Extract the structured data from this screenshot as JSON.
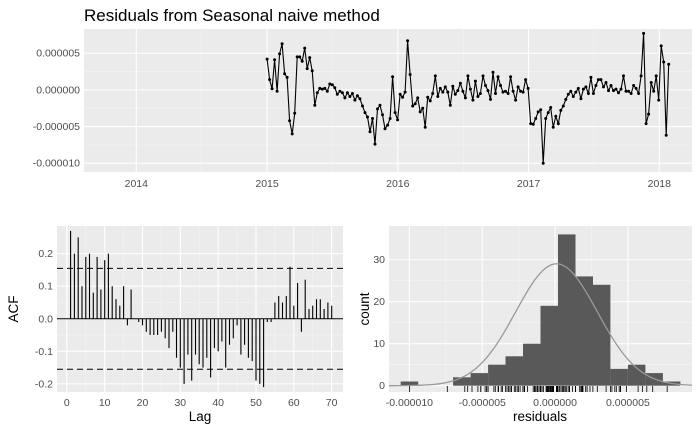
{
  "title": "Residuals from Seasonal naive method",
  "colors": {
    "panel": "#ebebeb",
    "grid_major": "#ffffff",
    "line": "#000000",
    "bar": "#595959",
    "density": "#999999",
    "tick_text": "#4d4d4d"
  },
  "charts": {
    "residuals_ts": {
      "type": "line",
      "x_ticks": [
        2014,
        2015,
        2016,
        2017,
        2018
      ],
      "y_ticks": [
        5e-06,
        0.0,
        -5e-06,
        -1e-05
      ],
      "y_tick_labels": [
        "0.000005",
        "0.000000",
        "-0.000005",
        "-0.000010"
      ],
      "xlim": [
        2013.6,
        2018.25
      ],
      "ylim": [
        -1.12e-05,
        8.3e-06
      ],
      "x_start": 2015.0,
      "x_step": 0.0192,
      "values": [
        4.2e-06,
        1.4e-06,
        1.5e-07,
        4.1e-06,
        -2e-07,
        4.9e-06,
        6.3e-06,
        2.2e-06,
        1.7e-06,
        -4.2e-06,
        -6e-06,
        -3.2e-06,
        4.5e-06,
        4.5e-06,
        3.9e-06,
        5.7e-06,
        2.9e-06,
        4.4e-06,
        2.6e-06,
        -2.1e-06,
        -4e-07,
        2e-07,
        1e-07,
        2e-07,
        -2e-07,
        8e-07,
        7e-07,
        3e-07,
        -6e-07,
        -2e-07,
        -4e-07,
        -1.1e-06,
        -4e-07,
        -9e-07,
        -5e-07,
        -1.4e-06,
        -8e-07,
        -1.2e-06,
        -2.2e-06,
        -3.1e-06,
        -3.7e-06,
        -5.7e-06,
        -3.9e-06,
        -7.4e-06,
        -2.6e-06,
        -2.1e-06,
        -3.4e-06,
        -5.3e-06,
        -4.8e-06,
        -3.9e-06,
        1.8e-06,
        -3.1e-06,
        -4.1e-06,
        -6e-07,
        -1e-06,
        -3e-07,
        6.7e-06,
        2.1e-06,
        -2.2e-06,
        -1.9e-06,
        -1.1e-06,
        -3e-06,
        -2.5e-06,
        -5.1e-06,
        -1e-06,
        -1.5e-06,
        -5e-07,
        1.9e-06,
        -9e-07,
        2e-07,
        -3e-07,
        4e-07,
        -3e-07,
        -2.1e-06,
        5e-07,
        -6e-07,
        -1e-07,
        9e-07,
        -2e-07,
        -1.1e-06,
        1.9e-06,
        1e-07,
        -1.4e-06,
        1.2e-06,
        -9e-07,
        -5e-07,
        1.9e-06,
        6e-07,
        -1e-07,
        -1.3e-06,
        2.4e-06,
        -5e-07,
        1.8e-06,
        6e-07,
        -3e-07,
        -2e-07,
        -5e-07,
        1.8e-06,
        -2e-07,
        -1.4e-06,
        4e-07,
        -2e-07,
        -3e-07,
        1.4e-06,
        2e-07,
        -4.6e-06,
        -4.7e-06,
        -3.9e-06,
        -3e-06,
        -2.7e-06,
        -1e-05,
        -3.9e-06,
        -3.1e-06,
        -2.4e-06,
        -5.1e-06,
        -3.6e-06,
        -4.6e-06,
        -2.8e-06,
        -2.2e-06,
        -1.3e-06,
        -6e-07,
        -2e-07,
        -9e-07,
        -3e-07,
        2e-07,
        -1.2e-06,
        1e-07,
        4e-07,
        -5e-07,
        1.7e-06,
        -5e-07,
        6e-07,
        1.4e-06,
        1.4e-06,
        4e-07,
        1e-06,
        -1e-07,
        6e-07,
        -1e-07,
        1e-07,
        -4e-07,
        1e-07,
        1.9e-06,
        -2e-07,
        -2e-07,
        -5e-07,
        6e-07,
        2e-07,
        -5e-07,
        1.9e-06,
        7.7e-06,
        -4.6e-06,
        -3.3e-06,
        1e-06,
        -2e-07,
        1.9e-06,
        -1.4e-06,
        6e-06,
        3.8e-06,
        -6.2e-06,
        3.5e-06
      ]
    },
    "acf": {
      "type": "bar",
      "xlabel": "Lag",
      "ylabel": "ACF",
      "x_ticks": [
        0,
        10,
        20,
        30,
        40,
        50,
        60,
        70
      ],
      "y_ticks": [
        0.2,
        0.1,
        0.0,
        -0.1,
        -0.2
      ],
      "y_tick_labels": [
        "0.2",
        "0.1",
        "0.0",
        "-0.1",
        "-0.2"
      ],
      "xlim": [
        -2.6,
        73
      ],
      "ylim": [
        -0.225,
        0.285
      ],
      "ci": 0.155,
      "lags": [
        1,
        2,
        3,
        4,
        5,
        6,
        7,
        8,
        9,
        10,
        11,
        12,
        13,
        14,
        15,
        16,
        17,
        18,
        19,
        20,
        21,
        22,
        23,
        24,
        25,
        26,
        27,
        28,
        29,
        30,
        31,
        32,
        33,
        34,
        35,
        36,
        37,
        38,
        39,
        40,
        41,
        42,
        43,
        44,
        45,
        46,
        47,
        48,
        49,
        50,
        51,
        52,
        53,
        54,
        55,
        56,
        57,
        58,
        59,
        60,
        61,
        62,
        63,
        64,
        65,
        66,
        67,
        68,
        69,
        70
      ],
      "values": [
        0.27,
        0.2,
        0.25,
        0.1,
        0.19,
        0.2,
        0.08,
        0.19,
        0.09,
        0.18,
        0.2,
        0.1,
        0.06,
        0.04,
        0.1,
        -0.02,
        0.09,
        0.0,
        -0.01,
        -0.02,
        -0.04,
        -0.05,
        -0.05,
        -0.05,
        -0.04,
        -0.06,
        -0.09,
        -0.04,
        -0.12,
        -0.15,
        -0.2,
        -0.11,
        -0.19,
        -0.11,
        -0.14,
        -0.15,
        -0.12,
        -0.18,
        -0.09,
        -0.1,
        -0.07,
        -0.15,
        -0.08,
        -0.06,
        -0.02,
        -0.11,
        -0.08,
        -0.12,
        -0.13,
        -0.19,
        -0.2,
        -0.21,
        -0.01,
        -0.01,
        0.05,
        0.07,
        0.05,
        0.07,
        0.16,
        0.04,
        0.11,
        -0.04,
        0.12,
        0.03,
        0.04,
        0.06,
        0.06,
        0.03,
        0.05,
        0.04
      ]
    },
    "histogram": {
      "type": "bar",
      "xlabel": "residuals",
      "ylabel": "count",
      "x_ticks": [
        -1e-05,
        -5e-06,
        0.0,
        5e-06
      ],
      "x_tick_labels": [
        "-0.000010",
        "-0.000005",
        "0.000000",
        "0.000005"
      ],
      "y_ticks": [
        0,
        10,
        20,
        30
      ],
      "y_tick_labels": [
        "0",
        "10",
        "20",
        "30"
      ],
      "xlim": [
        -1.14e-05,
        9.4e-06
      ],
      "ylim": [
        -1.5,
        38
      ],
      "bin_edges": [
        -1.06e-05,
        -9.4e-06,
        -8.2e-06,
        -7e-06,
        -5.8e-06,
        -4.6e-06,
        -3.4e-06,
        -2.2e-06,
        -1e-06,
        2e-07,
        1.4e-06,
        2.6e-06,
        3.8e-06,
        5e-06,
        6.2e-06,
        7.4e-06,
        8.6e-06
      ],
      "counts": [
        1,
        0,
        0,
        2,
        3,
        5,
        7,
        10,
        19,
        36,
        26,
        24,
        4,
        5,
        3,
        1
      ],
      "density_mean": 1e-07,
      "density_peak": 29,
      "density_sd": 2.8e-06
    }
  }
}
